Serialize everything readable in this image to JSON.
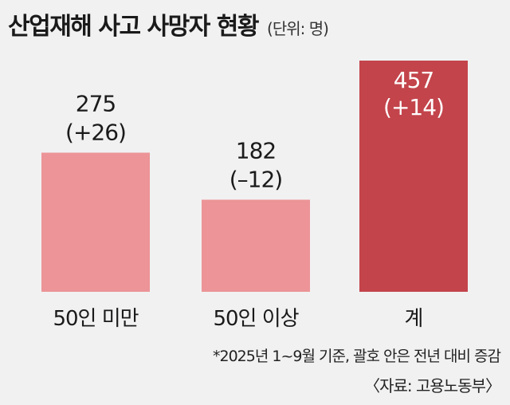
{
  "title": "산업재해 사고 사망자 현황",
  "unit": "(단위: 명)",
  "chart_data": {
    "type": "bar",
    "title": "산업재해 사고 사망자 현황",
    "categories": [
      "50인 미만",
      "50인 이상",
      "계"
    ],
    "values": [
      275,
      182,
      457
    ],
    "changes": [
      "(+26)",
      "(–12)",
      "(+14)"
    ],
    "colors": [
      "#ec9497",
      "#ec9497",
      "#c3444b"
    ],
    "ylim": [
      0,
      500
    ],
    "grid": false,
    "legend": "none"
  },
  "note": "*2025년 1~9월 기준, 괄호 안은 전년 대비 증감",
  "source": "〈자료: 고용노동부〉"
}
